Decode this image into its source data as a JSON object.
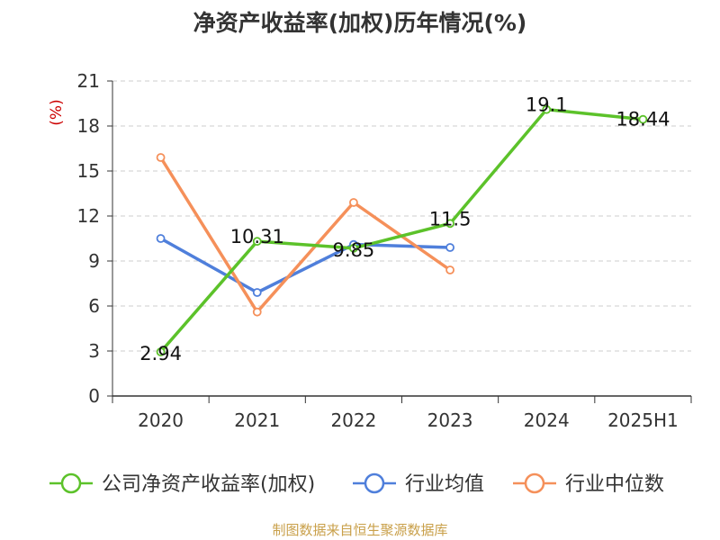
{
  "chart_data": {
    "type": "line",
    "title": "净资产收益率(加权)历年情况(%)",
    "ylabel": "(%)",
    "xlabel": "",
    "categories": [
      "2020",
      "2021",
      "2022",
      "2023",
      "2024",
      "2025H1"
    ],
    "yticks": [
      "0",
      "3",
      "6",
      "9",
      "12",
      "15",
      "18",
      "21"
    ],
    "ylim": [
      0,
      21
    ],
    "grid": true,
    "legend_position": "bottom",
    "series": [
      {
        "name": "公司净资产收益率(加权)",
        "color": "#5cc22a",
        "values": [
          2.94,
          10.31,
          9.85,
          11.5,
          19.1,
          18.44
        ],
        "labels": [
          "2.94",
          "10.31",
          "9.85",
          "11.5",
          "19.1",
          "18.44"
        ]
      },
      {
        "name": "行业均值",
        "color": "#4f7fdb",
        "values": [
          10.5,
          6.9,
          10.1,
          9.9,
          null,
          null
        ]
      },
      {
        "name": "行业中位数",
        "color": "#f5905a",
        "values": [
          15.9,
          5.6,
          12.9,
          8.4,
          null,
          null
        ]
      }
    ]
  },
  "footer": {
    "source": "制图数据来自恒生聚源数据库"
  }
}
